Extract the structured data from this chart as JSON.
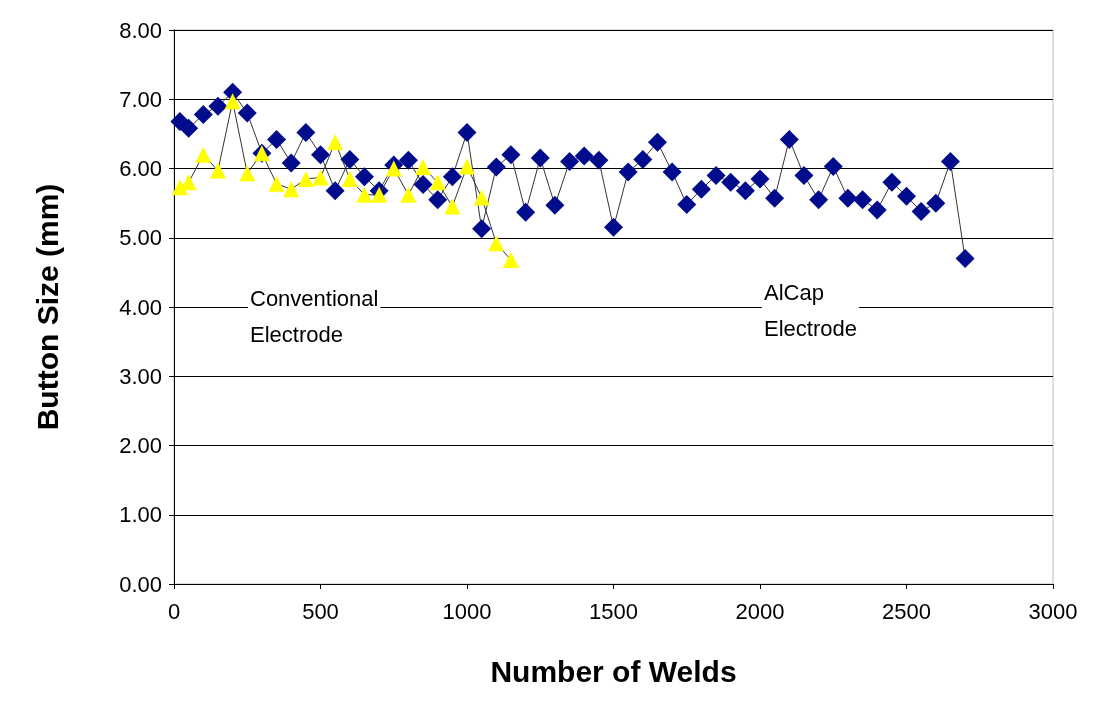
{
  "chart_data": {
    "type": "line",
    "xlabel": "Number of Welds",
    "ylabel": "Button Size (mm)",
    "xlim": [
      0,
      3000
    ],
    "xticks": [
      0,
      500,
      1000,
      1500,
      2000,
      2500,
      3000
    ],
    "ylim": [
      0,
      8
    ],
    "yticks": [
      {
        "value": 0,
        "label": "0.00"
      },
      {
        "value": 1,
        "label": "1.00"
      },
      {
        "value": 2,
        "label": "2.00"
      },
      {
        "value": 3,
        "label": "3.00"
      },
      {
        "value": 4,
        "label": "4.00"
      },
      {
        "value": 5,
        "label": "5.00"
      },
      {
        "value": 6,
        "label": "6.00"
      },
      {
        "value": 7,
        "label": "7.00"
      },
      {
        "value": 8,
        "label": "8.00"
      }
    ],
    "grid": "y",
    "series": [
      {
        "color": "#000c8c",
        "marker": "diamond",
        "x": [
          20,
          50,
          100,
          150,
          200,
          250,
          300,
          350,
          400,
          450,
          500,
          550,
          600,
          650,
          700,
          750,
          800,
          850,
          900,
          950,
          1000,
          1050,
          1100,
          1150,
          1200,
          1250,
          1300,
          1350,
          1400,
          1450,
          1500,
          1550,
          1600,
          1650,
          1700,
          1750,
          1800,
          1850,
          1900,
          1950,
          2000,
          2050,
          2100,
          2150,
          2200,
          2250,
          2300,
          2350,
          2400,
          2450,
          2500,
          2550,
          2600,
          2650,
          2700
        ],
        "values": [
          6.68,
          6.58,
          6.78,
          6.9,
          7.1,
          6.8,
          6.22,
          6.42,
          6.08,
          6.52,
          6.2,
          5.68,
          6.13,
          5.88,
          5.68,
          6.05,
          6.12,
          5.77,
          5.55,
          5.88,
          6.52,
          5.13,
          6.02,
          6.2,
          5.37,
          6.15,
          5.47,
          6.1,
          6.18,
          6.12,
          5.15,
          5.95,
          6.13,
          6.38,
          5.95,
          5.48,
          5.7,
          5.9,
          5.8,
          5.68,
          5.85,
          5.57,
          6.42,
          5.9,
          5.55,
          6.03,
          5.57,
          5.55,
          5.4,
          5.8,
          5.6,
          5.38,
          5.5,
          6.1,
          4.7
        ]
      },
      {
        "color": "#ffff00",
        "marker": "triangle",
        "x": [
          20,
          50,
          100,
          150,
          200,
          250,
          300,
          350,
          400,
          450,
          500,
          550,
          600,
          650,
          700,
          750,
          800,
          850,
          900,
          950,
          1000,
          1050,
          1100,
          1150
        ],
        "values": [
          5.73,
          5.8,
          6.2,
          5.97,
          6.97,
          5.93,
          6.22,
          5.78,
          5.7,
          5.85,
          5.87,
          6.38,
          5.85,
          5.62,
          5.62,
          6.0,
          5.62,
          6.02,
          5.8,
          5.45,
          6.03,
          5.58,
          4.92,
          4.68
        ]
      }
    ],
    "annotations": [
      "Conventional\nElectrode",
      "AlCap\nElectrode"
    ]
  }
}
